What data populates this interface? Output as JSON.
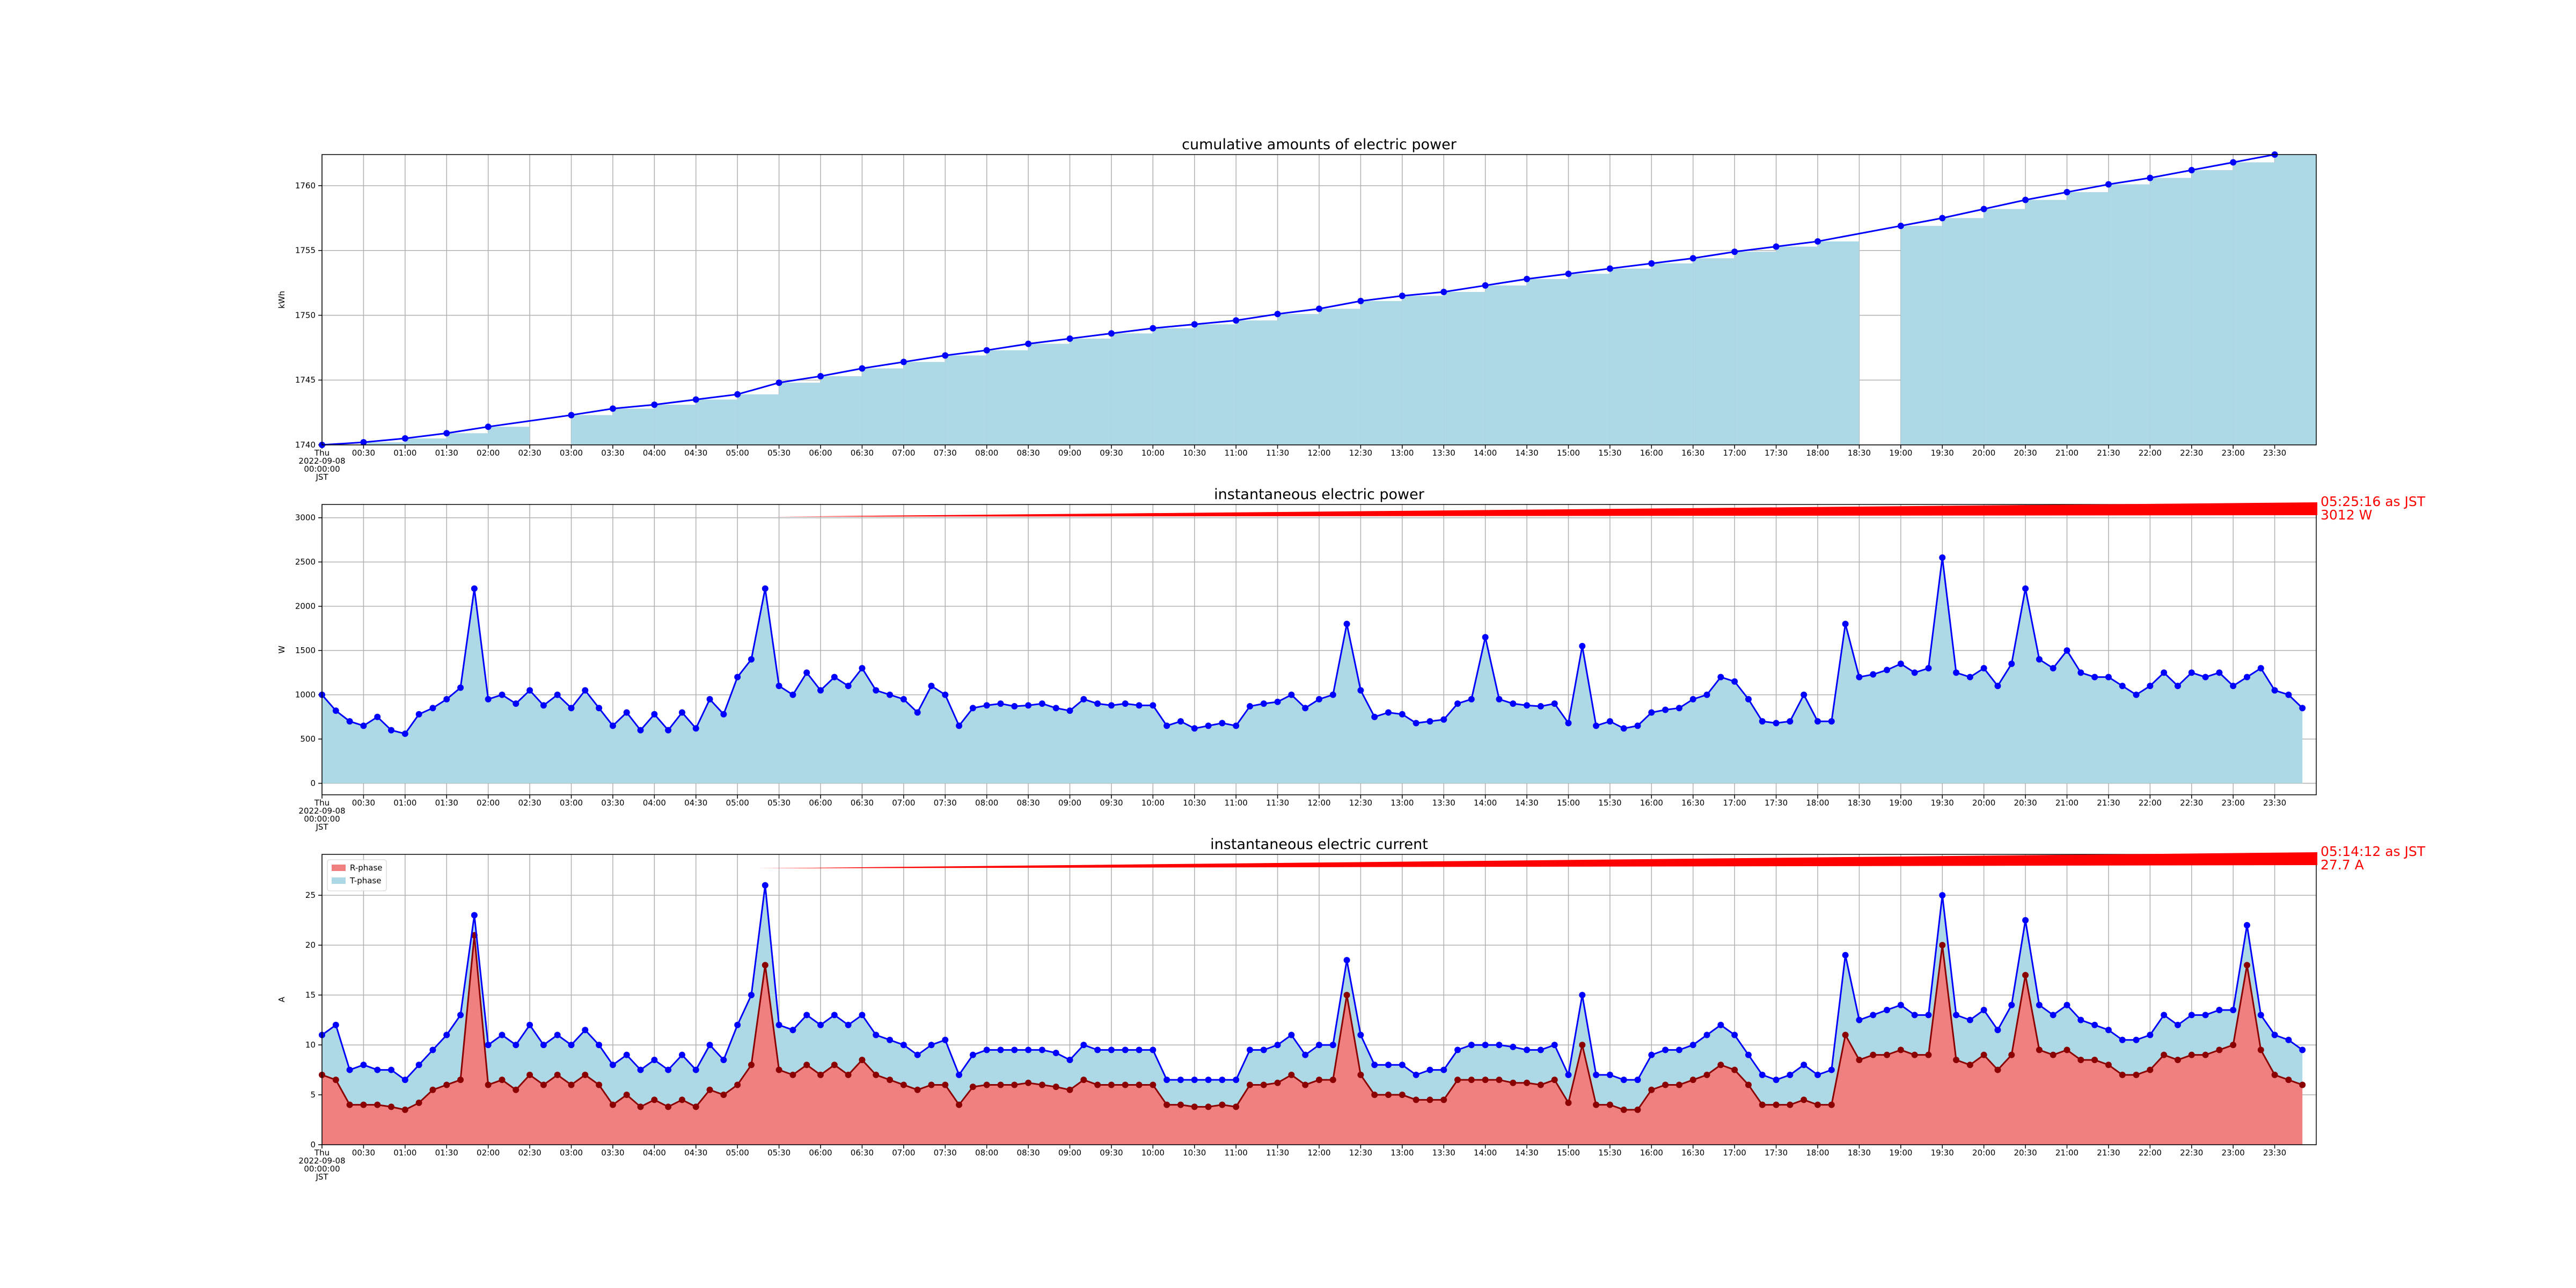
{
  "chart_data": [
    {
      "type": "bar",
      "title": "cumulative amounts of electric power",
      "y_label": "kWh",
      "x": [
        "00:00",
        "00:30",
        "01:00",
        "01:30",
        "02:00",
        "03:00",
        "03:30",
        "04:00",
        "04:30",
        "05:00",
        "05:30",
        "06:00",
        "06:30",
        "07:00",
        "07:30",
        "08:00",
        "08:30",
        "09:00",
        "09:30",
        "10:00",
        "10:30",
        "11:00",
        "11:30",
        "12:00",
        "12:30",
        "13:00",
        "13:30",
        "14:00",
        "14:30",
        "15:00",
        "15:30",
        "16:00",
        "16:30",
        "17:00",
        "17:30",
        "18:00",
        "19:00",
        "19:30",
        "20:00",
        "20:30",
        "21:00",
        "21:30",
        "22:00",
        "22:30",
        "23:00",
        "23:30"
      ],
      "values": [
        1740,
        1740.2,
        1740.5,
        1740.9,
        1741.4,
        1742.3,
        1742.8,
        1743.1,
        1743.5,
        1743.9,
        1744.8,
        1745.3,
        1745.9,
        1746.4,
        1746.9,
        1747.3,
        1747.8,
        1748.2,
        1748.6,
        1749,
        1749.3,
        1749.6,
        1750.1,
        1750.5,
        1751.1,
        1751.5,
        1751.8,
        1752.3,
        1752.8,
        1753.2,
        1753.6,
        1754,
        1754.4,
        1754.9,
        1755.3,
        1755.7,
        1756.9,
        1757.5,
        1758.2,
        1758.9,
        1759.5,
        1760.1,
        1760.6,
        1761.2,
        1761.8,
        1762.4
      ],
      "color": "lightblue",
      "line_color": "blue",
      "grid": true,
      "xlim": [
        "00:00",
        "24:00"
      ],
      "xticks": [
        {
          "value": "00:00",
          "label": "Thu\n2022-09-08\n00:00:00\nJST"
        },
        "00:30",
        "01:00",
        "01:30",
        "02:00",
        "02:30",
        "03:00",
        "03:30",
        "04:00",
        "04:30",
        "05:00",
        "05:30",
        "06:00",
        "06:30",
        "07:00",
        "07:30",
        "08:00",
        "08:30",
        "09:00",
        "09:30",
        "10:00",
        "10:30",
        "11:00",
        "11:30",
        "12:00",
        "12:30",
        "13:00",
        "13:30",
        "14:00",
        "14:30",
        "15:00",
        "15:30",
        "16:00",
        "16:30",
        "17:00",
        "17:30",
        "18:00",
        "18:30",
        "19:00",
        "19:30",
        "20:00",
        "20:30",
        "21:00",
        "21:30",
        "22:00",
        "22:30",
        "23:00",
        "23:30"
      ],
      "ylim": [
        1740,
        1762.4
      ],
      "yticks": [
        1740,
        1745,
        1750,
        1755,
        1760
      ]
    },
    {
      "type": "area",
      "title": "instantaneous electric power",
      "y_label": "W",
      "x": [
        "00:00",
        "00:10",
        "00:20",
        "00:30",
        "00:40",
        "00:50",
        "01:00",
        "01:10",
        "01:20",
        "01:30",
        "01:40",
        "01:50",
        "02:00",
        "02:10",
        "02:20",
        "02:30",
        "02:40",
        "02:50",
        "03:00",
        "03:10",
        "03:20",
        "03:30",
        "03:40",
        "03:50",
        "04:00",
        "04:10",
        "04:20",
        "04:30",
        "04:40",
        "04:50",
        "05:00",
        "05:10",
        "05:20",
        "05:30",
        "05:40",
        "05:50",
        "06:00",
        "06:10",
        "06:20",
        "06:30",
        "06:40",
        "06:50",
        "07:00",
        "07:10",
        "07:20",
        "07:30",
        "07:40",
        "07:50",
        "08:00",
        "08:10",
        "08:20",
        "08:30",
        "08:40",
        "08:50",
        "09:00",
        "09:10",
        "09:20",
        "09:30",
        "09:40",
        "09:50",
        "10:00",
        "10:10",
        "10:20",
        "10:30",
        "10:40",
        "10:50",
        "11:00",
        "11:10",
        "11:20",
        "11:30",
        "11:40",
        "11:50",
        "12:00",
        "12:10",
        "12:20",
        "12:30",
        "12:40",
        "12:50",
        "13:00",
        "13:10",
        "13:20",
        "13:30",
        "13:40",
        "13:50",
        "14:00",
        "14:10",
        "14:20",
        "14:30",
        "14:40",
        "14:50",
        "15:00",
        "15:10",
        "15:20",
        "15:30",
        "15:40",
        "15:50",
        "16:00",
        "16:10",
        "16:20",
        "16:30",
        "16:40",
        "16:50",
        "17:00",
        "17:10",
        "17:20",
        "17:30",
        "17:40",
        "17:50",
        "18:00",
        "18:10",
        "18:20",
        "18:30",
        "18:40",
        "18:50",
        "19:00",
        "19:10",
        "19:20",
        "19:30",
        "19:40",
        "19:50",
        "20:00",
        "20:10",
        "20:20",
        "20:30",
        "20:40",
        "20:50",
        "21:00",
        "21:10",
        "21:20",
        "21:30",
        "21:40",
        "21:50",
        "22:00",
        "22:10",
        "22:20",
        "22:30",
        "22:40",
        "22:50",
        "23:00",
        "23:10",
        "23:20",
        "23:30",
        "23:40",
        "23:50"
      ],
      "values": [
        1000,
        820,
        700,
        650,
        750,
        600,
        560,
        780,
        850,
        950,
        1080,
        2200,
        950,
        1000,
        900,
        1050,
        880,
        1000,
        850,
        1050,
        850,
        650,
        800,
        600,
        780,
        600,
        800,
        620,
        950,
        780,
        1200,
        1400,
        2200,
        1100,
        1000,
        1250,
        1050,
        1200,
        1100,
        1300,
        1050,
        1000,
        950,
        800,
        1100,
        1000,
        650,
        850,
        880,
        900,
        870,
        880,
        900,
        850,
        820,
        950,
        900,
        880,
        900,
        880,
        880,
        650,
        700,
        620,
        650,
        680,
        650,
        870,
        900,
        920,
        1000,
        850,
        950,
        1000,
        1800,
        1050,
        750,
        800,
        780,
        680,
        700,
        720,
        900,
        950,
        1650,
        950,
        900,
        880,
        870,
        900,
        680,
        1550,
        650,
        700,
        620,
        650,
        800,
        830,
        850,
        950,
        1000,
        1200,
        1150,
        950,
        700,
        680,
        700,
        1000,
        700,
        700,
        1800,
        1200,
        1230,
        1280,
        1350,
        1250,
        1300,
        2550,
        1250,
        1200,
        1300,
        1100,
        1350,
        2200,
        1400,
        1300,
        1500,
        1250,
        1200,
        1200,
        1100,
        1000,
        1100,
        1250,
        1100,
        1250,
        1200,
        1250,
        1100,
        1200,
        1300,
        1050,
        1000,
        850
      ],
      "color": "lightblue",
      "line_color": "blue",
      "grid": true,
      "annotation": {
        "text": [
          "05:25:16 as JST",
          "3012 W"
        ],
        "x": "05:25:16",
        "y": 3012,
        "color": "red"
      },
      "xlim": [
        "00:00",
        "24:00"
      ],
      "xticks": [
        {
          "value": "00:00",
          "label": "Thu\n2022-09-08\n00:00:00\nJST"
        },
        "00:30",
        "01:00",
        "01:30",
        "02:00",
        "02:30",
        "03:00",
        "03:30",
        "04:00",
        "04:30",
        "05:00",
        "05:30",
        "06:00",
        "06:30",
        "07:00",
        "07:30",
        "08:00",
        "08:30",
        "09:00",
        "09:30",
        "10:00",
        "10:30",
        "11:00",
        "11:30",
        "12:00",
        "12:30",
        "13:00",
        "13:30",
        "14:00",
        "14:30",
        "15:00",
        "15:30",
        "16:00",
        "16:30",
        "17:00",
        "17:30",
        "18:00",
        "18:30",
        "19:00",
        "19:30",
        "20:00",
        "20:30",
        "21:00",
        "21:30",
        "22:00",
        "22:30",
        "23:00",
        "23:30"
      ],
      "ylim": [
        -130,
        3150
      ],
      "yticks": [
        0,
        500,
        1000,
        1500,
        2000,
        2500,
        3000
      ]
    },
    {
      "type": "area",
      "title": "instantaneous electric current",
      "y_label": "A",
      "stacked": true,
      "legend": "upper left",
      "x": [
        "00:00",
        "00:10",
        "00:20",
        "00:30",
        "00:40",
        "00:50",
        "01:00",
        "01:10",
        "01:20",
        "01:30",
        "01:40",
        "01:50",
        "02:00",
        "02:10",
        "02:20",
        "02:30",
        "02:40",
        "02:50",
        "03:00",
        "03:10",
        "03:20",
        "03:30",
        "03:40",
        "03:50",
        "04:00",
        "04:10",
        "04:20",
        "04:30",
        "04:40",
        "04:50",
        "05:00",
        "05:10",
        "05:20",
        "05:30",
        "05:40",
        "05:50",
        "06:00",
        "06:10",
        "06:20",
        "06:30",
        "06:40",
        "06:50",
        "07:00",
        "07:10",
        "07:20",
        "07:30",
        "07:40",
        "07:50",
        "08:00",
        "08:10",
        "08:20",
        "08:30",
        "08:40",
        "08:50",
        "09:00",
        "09:10",
        "09:20",
        "09:30",
        "09:40",
        "09:50",
        "10:00",
        "10:10",
        "10:20",
        "10:30",
        "10:40",
        "10:50",
        "11:00",
        "11:10",
        "11:20",
        "11:30",
        "11:40",
        "11:50",
        "12:00",
        "12:10",
        "12:20",
        "12:30",
        "12:40",
        "12:50",
        "13:00",
        "13:10",
        "13:20",
        "13:30",
        "13:40",
        "13:50",
        "14:00",
        "14:10",
        "14:20",
        "14:30",
        "14:40",
        "14:50",
        "15:00",
        "15:10",
        "15:20",
        "15:30",
        "15:40",
        "15:50",
        "16:00",
        "16:10",
        "16:20",
        "16:30",
        "16:40",
        "16:50",
        "17:00",
        "17:10",
        "17:20",
        "17:30",
        "17:40",
        "17:50",
        "18:00",
        "18:10",
        "18:20",
        "18:30",
        "18:40",
        "18:50",
        "19:00",
        "19:10",
        "19:20",
        "19:30",
        "19:40",
        "19:50",
        "20:00",
        "20:10",
        "20:20",
        "20:30",
        "20:40",
        "20:50",
        "21:00",
        "21:10",
        "21:20",
        "21:30",
        "21:40",
        "21:50",
        "22:00",
        "22:10",
        "22:20",
        "22:30",
        "22:40",
        "22:50",
        "23:00",
        "23:10",
        "23:20",
        "23:30",
        "23:40",
        "23:50"
      ],
      "series": [
        {
          "name": "R-phase",
          "color": "lightcoral",
          "line_color": "darkred",
          "values": [
            7,
            6.5,
            4,
            4,
            4,
            3.8,
            3.5,
            4.2,
            5.5,
            6,
            6.5,
            21,
            6,
            6.5,
            5.5,
            7,
            6,
            7,
            6,
            7,
            6,
            4,
            5,
            3.8,
            4.5,
            3.8,
            4.5,
            3.8,
            5.5,
            5,
            6,
            8,
            18,
            7.5,
            7,
            8,
            7,
            8,
            7,
            8.5,
            7,
            6.5,
            6,
            5.5,
            6,
            6,
            4,
            5.8,
            6,
            6,
            6,
            6.2,
            6,
            5.8,
            5.5,
            6.5,
            6,
            6,
            6,
            6,
            6,
            4,
            4,
            3.8,
            3.8,
            4,
            3.8,
            6,
            6,
            6.2,
            7,
            6,
            6.5,
            6.5,
            15,
            7,
            5,
            5,
            5,
            4.5,
            4.5,
            4.5,
            6.5,
            6.5,
            6.5,
            6.5,
            6.2,
            6.2,
            6,
            6.5,
            4.2,
            10,
            4,
            4,
            3.5,
            3.5,
            5.5,
            6,
            6,
            6.5,
            7,
            8,
            7.5,
            6,
            4,
            4,
            4,
            4.5,
            4,
            4,
            11,
            8.5,
            9,
            9,
            9.5,
            9,
            9,
            20,
            8.5,
            8,
            9,
            7.5,
            9,
            17,
            9.5,
            9,
            9.5,
            8.5,
            8.5,
            8,
            7,
            7,
            7.5,
            9,
            8.5,
            9,
            9,
            9.5,
            10,
            18,
            9.5,
            7,
            6.5,
            6
          ]
        },
        {
          "name": "T-phase",
          "color": "lightblue",
          "line_color": "blue",
          "values": [
            4,
            5.5,
            3.5,
            4,
            3.5,
            3.7,
            3,
            3.8,
            4,
            5,
            6.5,
            2,
            4,
            4.5,
            4.5,
            5,
            4,
            4,
            4,
            4.5,
            4,
            4,
            4,
            3.7,
            4,
            3.7,
            4.5,
            3.7,
            4.5,
            3.5,
            6,
            7,
            8,
            4.5,
            4.5,
            5,
            5,
            5,
            5,
            4.5,
            4,
            4,
            4,
            3.5,
            4,
            4.5,
            3,
            3.2,
            3.5,
            3.5,
            3.5,
            3.3,
            3.5,
            3.4,
            3,
            3.5,
            3.5,
            3.5,
            3.5,
            3.5,
            3.5,
            2.5,
            2.5,
            2.7,
            2.7,
            2.5,
            2.7,
            3.5,
            3.5,
            3.8,
            4,
            3,
            3.5,
            3.5,
            3.5,
            4,
            3,
            3,
            3,
            2.5,
            3,
            3,
            3,
            3.5,
            3.5,
            3.5,
            3.6,
            3.3,
            3.5,
            3.5,
            2.8,
            5,
            3,
            3,
            3,
            3,
            3.5,
            3.5,
            3.5,
            3.5,
            4,
            4,
            3.5,
            3,
            3,
            2.5,
            3,
            3.5,
            3,
            3.5,
            8,
            4,
            4,
            4.5,
            4.5,
            4,
            4,
            5,
            4.5,
            4.5,
            4.5,
            4,
            5,
            5.5,
            4.5,
            4,
            4.5,
            4,
            3.5,
            3.5,
            3.5,
            3.5,
            3.5,
            4,
            3.5,
            4,
            4,
            4,
            3.5,
            4,
            3.5,
            4,
            4,
            3.5
          ]
        }
      ],
      "grid": true,
      "annotation": {
        "text": [
          "05:14:12 as JST",
          "27.7 A"
        ],
        "x": "05:14:12",
        "y": 27.7,
        "color": "red"
      },
      "xlim": [
        "00:00",
        "24:00"
      ],
      "xticks": [
        {
          "value": "00:00",
          "label": "Thu\n2022-09-08\n00:00:00\nJST"
        },
        "00:30",
        "01:00",
        "01:30",
        "02:00",
        "02:30",
        "03:00",
        "03:30",
        "04:00",
        "04:30",
        "05:00",
        "05:30",
        "06:00",
        "06:30",
        "07:00",
        "07:30",
        "08:00",
        "08:30",
        "09:00",
        "09:30",
        "10:00",
        "10:30",
        "11:00",
        "11:30",
        "12:00",
        "12:30",
        "13:00",
        "13:30",
        "14:00",
        "14:30",
        "15:00",
        "15:30",
        "16:00",
        "16:30",
        "17:00",
        "17:30",
        "18:00",
        "18:30",
        "19:00",
        "19:30",
        "20:00",
        "20:30",
        "21:00",
        "21:30",
        "22:00",
        "22:30",
        "23:00",
        "23:30"
      ],
      "ylim": [
        0,
        29.1
      ],
      "yticks": [
        0,
        5,
        10,
        15,
        20,
        25
      ]
    }
  ]
}
